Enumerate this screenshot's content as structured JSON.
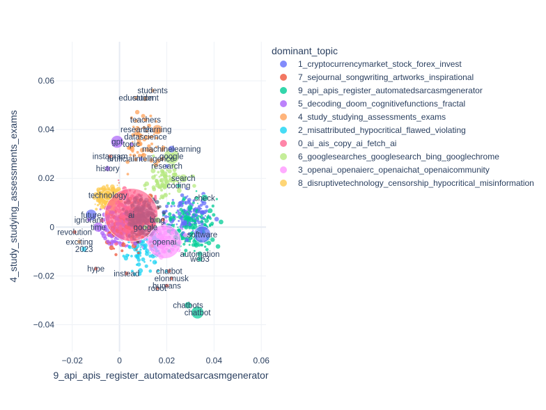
{
  "chart_data": {
    "type": "scatter",
    "xlabel": "9_api_apis_register_automatedsarcasmgenerator",
    "ylabel": "4_study_studying_assessments_exams",
    "xlim": [
      -0.027,
      0.062
    ],
    "ylim": [
      -0.051,
      0.076
    ],
    "x_ticks": [
      -0.02,
      0,
      0.02,
      0.04,
      0.06
    ],
    "x_tick_labels": [
      "−0.02",
      "0",
      "0.02",
      "0.04",
      "0.06"
    ],
    "y_ticks": [
      -0.04,
      -0.02,
      0,
      0.02,
      0.04,
      0.06
    ],
    "y_tick_labels": [
      "−0.04",
      "−0.02",
      "0",
      "0.02",
      "0.04",
      "0.06"
    ],
    "grid": true,
    "legend": {
      "title": "dominant_topic",
      "placement": "right",
      "entries": [
        {
          "name": "1_cryptocurrencymarket_stock_forex_invest",
          "color": "#636efa"
        },
        {
          "name": "7_sejournal_songwriting_artworks_inspirational",
          "color": "#EF553B"
        },
        {
          "name": "9_api_apis_register_automatedsarcasmgenerator",
          "color": "#00cc96"
        },
        {
          "name": "5_decoding_doom_cognitivefunctions_fractal",
          "color": "#ab63fa"
        },
        {
          "name": "4_study_studying_assessments_exams",
          "color": "#FFA15A"
        },
        {
          "name": "2_misattributed_hypocritical_flawed_violating",
          "color": "#19d3f3"
        },
        {
          "name": "0_ai_ais_copy_ai_fetch_ai",
          "color": "#FF6692"
        },
        {
          "name": "6_googlesearches_googlesearch_bing_googlechrome",
          "color": "#B6E880"
        },
        {
          "name": "3_openai_openaierc_openaichat_openaicommunity",
          "color": "#FF97FF"
        },
        {
          "name": "8_disruptivetechnology_censorship_hypocritical_misinformation",
          "color": "#FECB52"
        }
      ]
    },
    "labeled_points": [
      {
        "text": "ai",
        "x": 0.005,
        "y": 0.005,
        "size": 38,
        "series": 6
      },
      {
        "text": "openai",
        "x": 0.019,
        "y": -0.006,
        "size": 24,
        "series": 8
      },
      {
        "text": "google",
        "x": 0.022,
        "y": 0.029,
        "size": 11,
        "series": 7
      },
      {
        "text": "students",
        "x": 0.014,
        "y": 0.056,
        "size": 3,
        "series": 4
      },
      {
        "text": "education",
        "x": 0.007,
        "y": 0.053,
        "size": 3,
        "series": 4
      },
      {
        "text": "student",
        "x": 0.011,
        "y": 0.053,
        "size": 3,
        "series": 4
      },
      {
        "text": "teachers",
        "x": 0.011,
        "y": 0.044,
        "size": 3,
        "series": 4
      },
      {
        "text": "learning",
        "x": 0.016,
        "y": 0.04,
        "size": 7,
        "series": 4
      },
      {
        "text": "research",
        "x": 0.007,
        "y": 0.04,
        "size": 3,
        "series": 4
      },
      {
        "text": "datascience",
        "x": 0.011,
        "y": 0.037,
        "size": 3,
        "series": 4
      },
      {
        "text": "gpt",
        "x": -0.001,
        "y": 0.035,
        "size": 9,
        "series": 3
      },
      {
        "text": "topic",
        "x": 0.005,
        "y": 0.034,
        "size": 3,
        "series": 3
      },
      {
        "text": "machinelearning",
        "x": 0.022,
        "y": 0.032,
        "size": 5,
        "series": 0
      },
      {
        "text": "instagram",
        "x": -0.004,
        "y": 0.029,
        "size": 3,
        "series": 1
      },
      {
        "text": "artificialintelligence",
        "x": 0.009,
        "y": 0.028,
        "size": 3,
        "series": 0
      },
      {
        "text": "research",
        "x": 0.02,
        "y": 0.025,
        "size": 3,
        "series": 0
      },
      {
        "text": "history",
        "x": -0.005,
        "y": 0.024,
        "size": 4,
        "series": 3
      },
      {
        "text": "search",
        "x": 0.027,
        "y": 0.02,
        "size": 6,
        "series": 7
      },
      {
        "text": "coding",
        "x": 0.025,
        "y": 0.017,
        "size": 3,
        "series": 2
      },
      {
        "text": "technology",
        "x": -0.005,
        "y": 0.013,
        "size": 7,
        "series": 9
      },
      {
        "text": "check",
        "x": 0.036,
        "y": 0.012,
        "size": 5,
        "series": 2
      },
      {
        "text": "future",
        "x": -0.012,
        "y": 0.005,
        "size": 8,
        "series": 0
      },
      {
        "text": "ignorant",
        "x": -0.013,
        "y": 0.003,
        "size": 3,
        "series": 3
      },
      {
        "text": "time",
        "x": -0.009,
        "y": 0.0,
        "size": 7,
        "series": 3
      },
      {
        "text": "revolution",
        "x": -0.019,
        "y": -0.002,
        "size": 3,
        "series": 1
      },
      {
        "text": "bing",
        "x": 0.016,
        "y": 0.003,
        "size": 4,
        "series": 7
      },
      {
        "text": "google",
        "x": 0.011,
        "y": 0.0,
        "size": 3,
        "series": 7
      },
      {
        "text": "software",
        "x": 0.035,
        "y": -0.003,
        "size": 12,
        "series": 0
      },
      {
        "text": "exciting",
        "x": -0.017,
        "y": -0.006,
        "size": 3,
        "series": 4
      },
      {
        "text": "2023",
        "x": -0.015,
        "y": -0.009,
        "size": 4,
        "series": 5
      },
      {
        "text": "automation",
        "x": 0.034,
        "y": -0.011,
        "size": 4,
        "series": 2
      },
      {
        "text": "web3",
        "x": 0.034,
        "y": -0.013,
        "size": 4,
        "series": 2
      },
      {
        "text": "hype",
        "x": -0.01,
        "y": -0.017,
        "size": 3,
        "series": 1
      },
      {
        "text": "instead",
        "x": 0.003,
        "y": -0.019,
        "size": 3,
        "series": 1
      },
      {
        "text": "chatbot",
        "x": 0.021,
        "y": -0.018,
        "size": 3,
        "series": 1
      },
      {
        "text": "elonmusk",
        "x": 0.022,
        "y": -0.021,
        "size": 3,
        "series": 1
      },
      {
        "text": "humans",
        "x": 0.02,
        "y": -0.024,
        "size": 3,
        "series": 1
      },
      {
        "text": "robot",
        "x": 0.016,
        "y": -0.025,
        "size": 3,
        "series": 1
      },
      {
        "text": "chatbots",
        "x": 0.029,
        "y": -0.032,
        "size": 5,
        "series": 2
      },
      {
        "text": "chatbot",
        "x": 0.033,
        "y": -0.035,
        "size": 9,
        "series": 2
      }
    ]
  }
}
